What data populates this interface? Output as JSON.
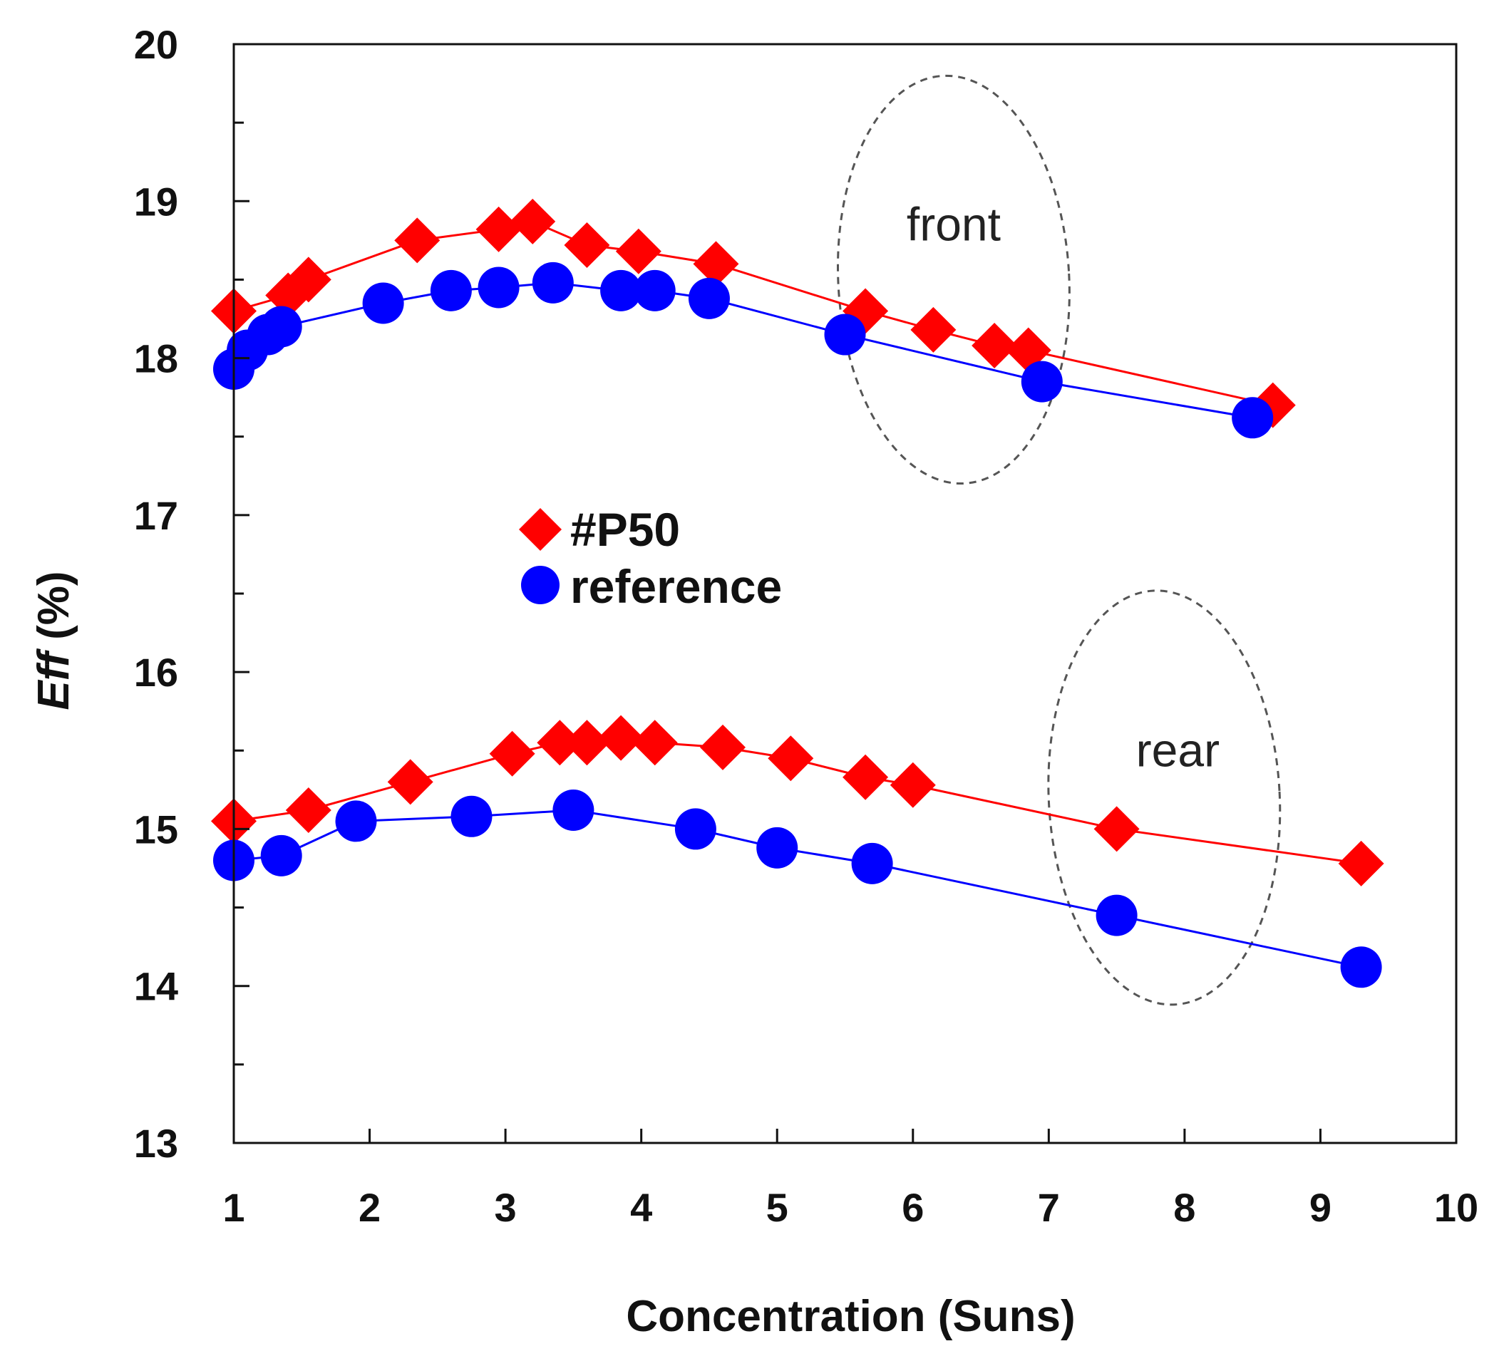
{
  "chart_data": {
    "type": "scatter",
    "title": "",
    "xlabel": "Concentration (Suns)",
    "ylabel_italic": "Eff",
    "ylabel_rest": " (%)",
    "xlim": [
      1,
      10
    ],
    "ylim": [
      13,
      20
    ],
    "xticks": [
      1,
      2,
      3,
      4,
      5,
      6,
      7,
      8,
      9,
      10
    ],
    "yticks": [
      13,
      14,
      15,
      16,
      17,
      18,
      19,
      20
    ],
    "yminor": [
      13.5,
      14.5,
      15.5,
      16.5,
      17.5,
      18.5,
      19.5
    ],
    "grid": false,
    "legend": {
      "placement": "center",
      "entries": [
        "#P50",
        "reference"
      ]
    },
    "colors": {
      "p50": "#ff0000",
      "reference": "#0000ff",
      "axis": "#111111",
      "ellipse": "#555555"
    },
    "series": [
      {
        "name": "#P50",
        "group": "front",
        "marker": "diamond",
        "color": "#ff0000",
        "x": [
          1.0,
          1.4,
          1.55,
          2.35,
          2.95,
          3.2,
          3.6,
          3.98,
          4.55,
          5.65,
          6.15,
          6.6,
          6.85,
          8.65
        ],
        "y": [
          18.3,
          18.4,
          18.5,
          18.75,
          18.82,
          18.87,
          18.72,
          18.68,
          18.6,
          18.3,
          18.18,
          18.08,
          18.05,
          17.7
        ]
      },
      {
        "name": "reference",
        "group": "front",
        "marker": "circle",
        "color": "#0000ff",
        "x": [
          1.0,
          1.1,
          1.25,
          1.35,
          2.1,
          2.6,
          2.95,
          3.35,
          3.85,
          4.1,
          4.5,
          5.5,
          6.95,
          8.5
        ],
        "y": [
          17.93,
          18.05,
          18.15,
          18.2,
          18.35,
          18.43,
          18.45,
          18.48,
          18.43,
          18.43,
          18.38,
          18.15,
          17.85,
          17.62
        ]
      },
      {
        "name": "#P50",
        "group": "rear",
        "marker": "diamond",
        "color": "#ff0000",
        "x": [
          1.0,
          1.55,
          2.3,
          3.05,
          3.4,
          3.6,
          3.85,
          4.1,
          4.6,
          5.1,
          5.65,
          6.0,
          7.5,
          9.3
        ],
        "y": [
          15.05,
          15.12,
          15.3,
          15.48,
          15.55,
          15.55,
          15.58,
          15.55,
          15.52,
          15.45,
          15.33,
          15.28,
          15.0,
          14.78
        ]
      },
      {
        "name": "reference",
        "group": "rear",
        "marker": "circle",
        "color": "#0000ff",
        "x": [
          1.0,
          1.35,
          1.9,
          2.75,
          3.5,
          4.4,
          5.0,
          5.7,
          7.5,
          9.3
        ],
        "y": [
          14.8,
          14.83,
          15.05,
          15.08,
          15.12,
          15.0,
          14.88,
          14.78,
          14.45,
          14.12
        ]
      }
    ],
    "annotations": [
      {
        "text": "front",
        "x": 6.3,
        "y": 18.85,
        "ellipse": {
          "cx": 6.3,
          "cy": 18.5,
          "rx": 0.85,
          "ry": 1.3
        }
      },
      {
        "text": "rear",
        "x": 7.95,
        "y": 15.5,
        "ellipse": {
          "cx": 7.85,
          "cy": 15.2,
          "rx": 0.85,
          "ry": 1.32
        }
      }
    ]
  }
}
